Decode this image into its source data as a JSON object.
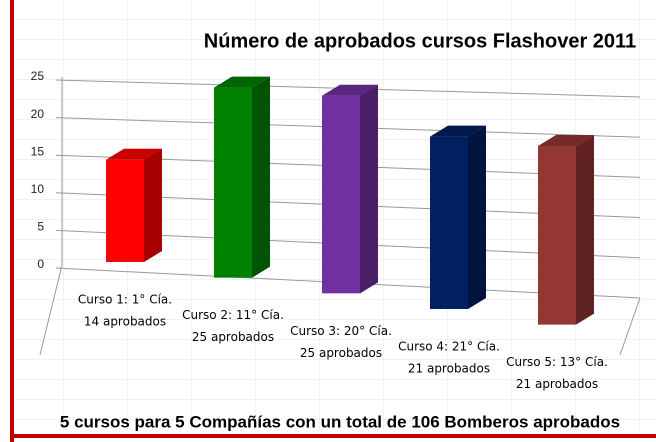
{
  "chart_data": {
    "type": "bar3d",
    "title": "Número de aprobados cursos Flashover 2011",
    "subtitle": "5 cursos para 5 Compañías con un total de 106 Bomberos aprobados",
    "categories": [
      "Curso 1: 1° Cía.",
      "Curso 2: 11° Cía.",
      "Curso 3: 20° Cía.",
      "Curso 4: 21° Cía.",
      "Curso 5: 13° Cía."
    ],
    "values": [
      14,
      25,
      25,
      21,
      21
    ],
    "value_labels": [
      "14 aprobados",
      "25 aprobados",
      "25 aprobados",
      "21 aprobados",
      "21 aprobados"
    ],
    "colors": [
      "#ff0000",
      "#008000",
      "#7030a0",
      "#002060",
      "#943634"
    ],
    "ylim": [
      0,
      25
    ],
    "yticks": [
      0,
      5,
      10,
      15,
      20,
      25
    ],
    "grid": true
  }
}
